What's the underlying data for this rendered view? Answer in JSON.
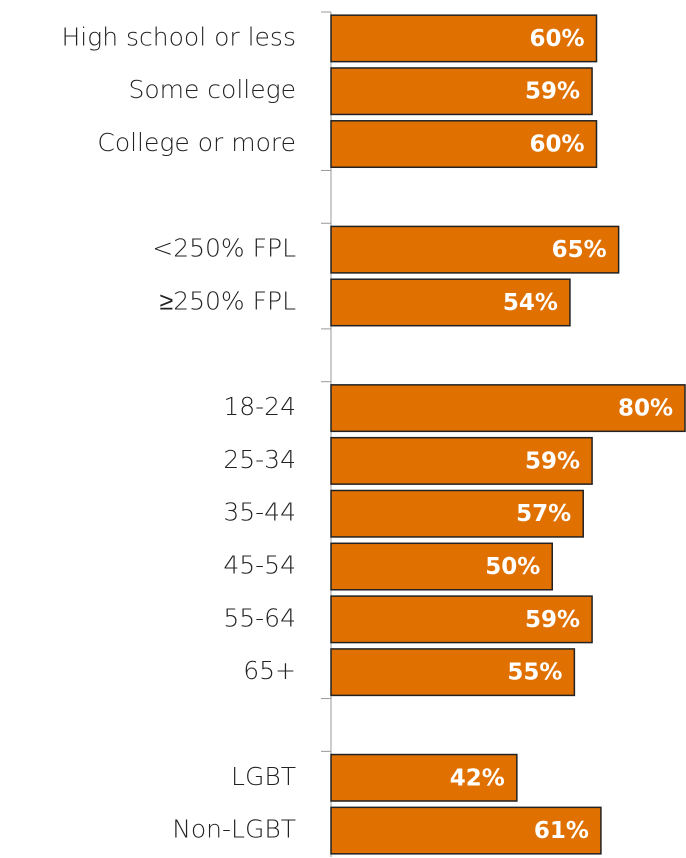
{
  "chart_data": {
    "type": "bar",
    "orientation": "horizontal",
    "categories": [
      "High school or less",
      "Some college",
      "College or more",
      null,
      "<250% FPL",
      "≥250% FPL",
      null,
      "18-24",
      "25-34",
      "35-44",
      "45-54",
      "55-64",
      "65+",
      null,
      "LGBT",
      "Non-LGBT"
    ],
    "values": [
      60,
      59,
      60,
      null,
      65,
      54,
      null,
      80,
      59,
      57,
      50,
      59,
      55,
      null,
      42,
      61
    ],
    "value_labels": [
      "60%",
      "59%",
      "60%",
      null,
      "65%",
      "54%",
      null,
      "80%",
      "59%",
      "57%",
      "50%",
      "59%",
      "55%",
      null,
      "42%",
      "61%"
    ],
    "color": "#e07000",
    "xlim": [
      0,
      80
    ]
  }
}
